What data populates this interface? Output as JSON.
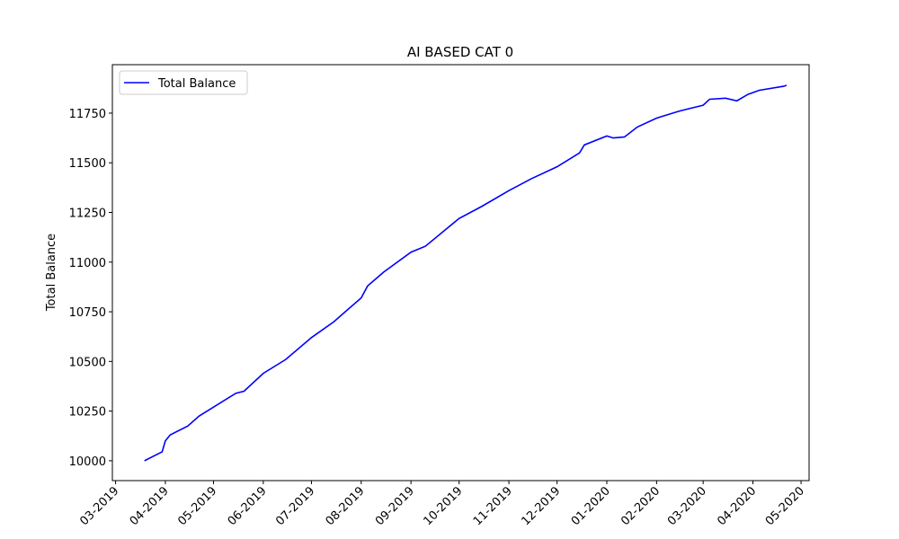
{
  "chart_data": {
    "type": "line",
    "title": "AI BASED CAT 0",
    "y_label": "Total Balance",
    "x": [
      "2019-03-19",
      "2019-03-30",
      "2019-04-01",
      "2019-04-04",
      "2019-04-15",
      "2019-04-22",
      "2019-05-01",
      "2019-05-15",
      "2019-05-20",
      "2019-06-01",
      "2019-06-15",
      "2019-07-01",
      "2019-07-15",
      "2019-08-01",
      "2019-08-05",
      "2019-08-15",
      "2019-09-01",
      "2019-09-10",
      "2019-10-01",
      "2019-10-15",
      "2019-11-01",
      "2019-11-15",
      "2019-12-01",
      "2019-12-15",
      "2019-12-18",
      "2020-01-01",
      "2020-01-05",
      "2020-01-12",
      "2020-01-20",
      "2020-02-01",
      "2020-02-15",
      "2020-03-01",
      "2020-03-05",
      "2020-03-15",
      "2020-03-22",
      "2020-03-29",
      "2020-04-05",
      "2020-04-20",
      "2020-04-22"
    ],
    "series": [
      {
        "name": "Total Balance",
        "color": "#0000ff",
        "values": [
          10000,
          10045,
          10100,
          10130,
          10175,
          10225,
          10270,
          10340,
          10350,
          10440,
          10510,
          10620,
          10700,
          10820,
          10880,
          10950,
          11050,
          11080,
          11220,
          11280,
          11360,
          11420,
          11480,
          11550,
          11590,
          11635,
          11625,
          11630,
          11680,
          11725,
          11760,
          11790,
          11820,
          11825,
          11812,
          11845,
          11865,
          11885,
          11890
        ]
      }
    ],
    "xlim": [
      "2019-02-27",
      "2020-05-06"
    ],
    "xticks": [
      {
        "value": "2019-03-01",
        "label": "03-2019"
      },
      {
        "value": "2019-04-01",
        "label": "04-2019"
      },
      {
        "value": "2019-05-01",
        "label": "05-2019"
      },
      {
        "value": "2019-06-01",
        "label": "06-2019"
      },
      {
        "value": "2019-07-01",
        "label": "07-2019"
      },
      {
        "value": "2019-08-01",
        "label": "08-2019"
      },
      {
        "value": "2019-09-01",
        "label": "09-2019"
      },
      {
        "value": "2019-10-01",
        "label": "10-2019"
      },
      {
        "value": "2019-11-01",
        "label": "11-2019"
      },
      {
        "value": "2019-12-01",
        "label": "12-2019"
      },
      {
        "value": "2020-01-01",
        "label": "01-2020"
      },
      {
        "value": "2020-02-01",
        "label": "02-2020"
      },
      {
        "value": "2020-03-01",
        "label": "03-2020"
      },
      {
        "value": "2020-04-01",
        "label": "04-2020"
      },
      {
        "value": "2020-05-01",
        "label": "05-2020"
      }
    ],
    "ylim": [
      9900,
      11994
    ],
    "yticks": [
      10000,
      10250,
      10500,
      10750,
      11000,
      11250,
      11500,
      11750
    ],
    "grid": false,
    "legend": "upper left"
  }
}
